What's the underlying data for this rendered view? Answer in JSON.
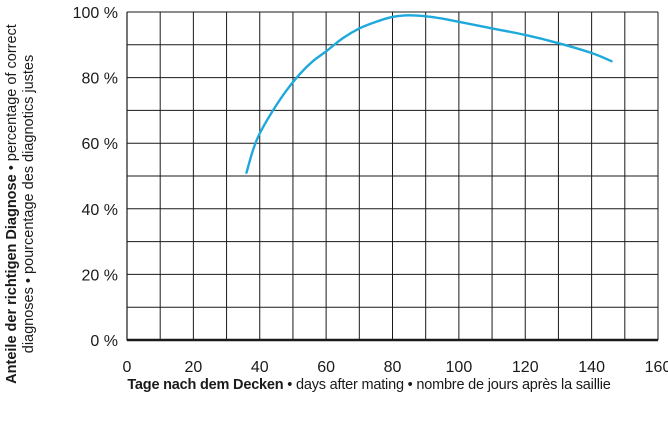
{
  "chart_data": {
    "type": "line",
    "xlabel_bold": "Tage nach dem Decken",
    "xlabel_rest": " • days after mating • nombre de jours après la saillie",
    "ylabel_line1_bold": "Anteile der richtigen Diagnose",
    "ylabel_line1_rest": " • percentage of correct",
    "ylabel_line2": "diagnoses • pourcentage des diagnotics justes",
    "xlim": [
      0,
      160
    ],
    "ylim": [
      0,
      100
    ],
    "x_ticks": [
      0,
      20,
      40,
      60,
      80,
      100,
      120,
      140,
      160
    ],
    "x_tick_labels": [
      "0",
      "20",
      "40",
      "60",
      "80",
      "100",
      "120",
      "140",
      "160"
    ],
    "y_ticks": [
      0,
      20,
      40,
      60,
      80,
      100
    ],
    "y_tick_labels": [
      "0 %",
      "20 %",
      "40 %",
      "60 %",
      "80 %",
      "100 %"
    ],
    "grid": true,
    "series": [
      {
        "color": "#1ea8dc",
        "x": [
          36,
          38,
          40,
          44,
          48,
          52,
          56,
          60,
          65,
          70,
          75,
          80,
          85,
          90,
          95,
          100,
          110,
          120,
          130,
          140,
          146
        ],
        "y": [
          51,
          58,
          63,
          70,
          76,
          81,
          85,
          88,
          92,
          95,
          97,
          98.5,
          99,
          98.7,
          98,
          97,
          95,
          93,
          90.5,
          87.5,
          85
        ]
      }
    ]
  }
}
